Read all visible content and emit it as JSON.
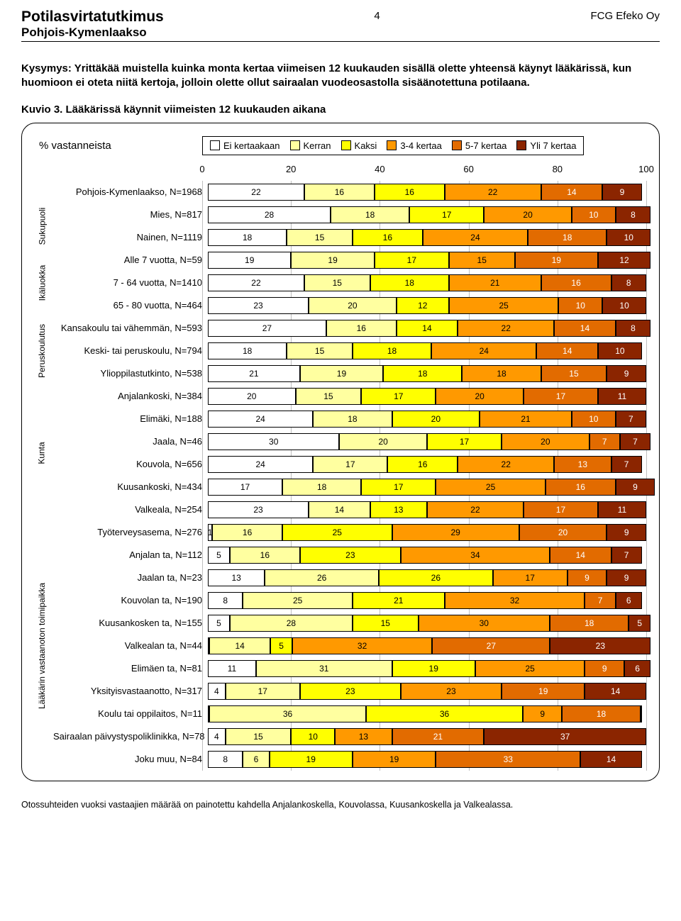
{
  "header": {
    "title": "Potilasvirtatutkimus",
    "subtitle": "Pohjois-Kymenlaakso",
    "page_number": "4",
    "company": "FCG Efeko Oy"
  },
  "question": "Kysymys: Yrittäkää muistella kuinka monta kertaa viimeisen 12 kuukauden sisällä olette yhteensä käynyt lääkärissä, kun huomioon ei oteta niitä kertoja, jolloin olette ollut sairaalan vuodeosastolla sisäänotettuna potilaana.",
  "kuvio": "Kuvio 3. Lääkärissä käynnit viimeisten 12 kuukauden aikana",
  "chart": {
    "y_title": "% vastanneista",
    "legend": [
      {
        "label": "Ei kertaakaan",
        "color": "#ffffff"
      },
      {
        "label": "Kerran",
        "color": "#ffffa0"
      },
      {
        "label": "Kaksi",
        "color": "#ffff00"
      },
      {
        "label": "3-4 kertaa",
        "color": "#ff9900"
      },
      {
        "label": "5-7 kertaa",
        "color": "#e26b00"
      },
      {
        "label": "Yli 7 kertaa",
        "color": "#8b2500"
      }
    ],
    "x_ticks": [
      0,
      20,
      40,
      60,
      80,
      100
    ],
    "x_max": 100,
    "dark_threshold": 4,
    "groups": [
      {
        "label": "",
        "rows": [
          {
            "label": "Pohjois-Kymenlaakso, N=1968",
            "values": [
              22,
              16,
              16,
              22,
              14,
              9
            ]
          }
        ]
      },
      {
        "label": "Sukupuoli",
        "rows": [
          {
            "label": "Mies, N=817",
            "values": [
              28,
              18,
              17,
              20,
              10,
              8
            ]
          },
          {
            "label": "Nainen, N=1119",
            "values": [
              18,
              15,
              16,
              24,
              18,
              10
            ]
          }
        ]
      },
      {
        "label": "Ikäluokka",
        "rows": [
          {
            "label": "Alle 7 vuotta, N=59",
            "values": [
              19,
              19,
              17,
              15,
              19,
              12
            ]
          },
          {
            "label": "7 - 64 vuotta, N=1410",
            "values": [
              22,
              15,
              18,
              21,
              16,
              8
            ]
          },
          {
            "label": "65 - 80 vuotta, N=464",
            "values": [
              23,
              20,
              12,
              25,
              10,
              10
            ]
          }
        ]
      },
      {
        "label": "Peruskoulutus",
        "rows": [
          {
            "label": "Kansakoulu tai vähemmän, N=593",
            "values": [
              27,
              16,
              14,
              22,
              14,
              8
            ]
          },
          {
            "label": "Keski- tai peruskoulu, N=794",
            "values": [
              18,
              15,
              18,
              24,
              14,
              10
            ]
          },
          {
            "label": "Ylioppilastutkinto, N=538",
            "values": [
              21,
              19,
              18,
              18,
              15,
              9
            ]
          }
        ]
      },
      {
        "label": "",
        "rows": [
          {
            "label": "Anjalankoski, N=384",
            "values": [
              20,
              15,
              17,
              20,
              17,
              11
            ]
          },
          {
            "label": "Elimäki, N=188",
            "values": [
              24,
              18,
              20,
              21,
              10,
              7
            ]
          }
        ]
      },
      {
        "label": "Kunta",
        "rows": [
          {
            "label": "Jaala, N=46",
            "values": [
              30,
              20,
              17,
              20,
              7,
              7
            ]
          },
          {
            "label": "Kouvola, N=656",
            "values": [
              24,
              17,
              16,
              22,
              13,
              7
            ]
          }
        ]
      },
      {
        "label": "",
        "rows": [
          {
            "label": "Kuusankoski, N=434",
            "values": [
              17,
              18,
              17,
              25,
              16,
              9
            ]
          },
          {
            "label": "Valkeala, N=254",
            "values": [
              23,
              14,
              13,
              22,
              17,
              11
            ]
          },
          {
            "label": "Työterveysasema, N=276",
            "values": [
              1,
              16,
              25,
              29,
              20,
              9
            ]
          },
          {
            "label": "Anjalan ta, N=112",
            "values": [
              5,
              16,
              23,
              34,
              14,
              7
            ]
          }
        ]
      },
      {
        "label": "Lääkärin vastaanoton toimipaikka",
        "rows": [
          {
            "label": "Jaalan ta, N=23",
            "values": [
              13,
              26,
              26,
              17,
              9,
              9
            ]
          },
          {
            "label": "Kouvolan ta, N=190",
            "values": [
              8,
              25,
              21,
              32,
              7,
              6
            ]
          },
          {
            "label": "Kuusankosken ta, N=155",
            "values": [
              5,
              28,
              15,
              30,
              18,
              5
            ]
          },
          {
            "label": "Valkealan ta, N=44",
            "values": [
              0,
              14,
              5,
              32,
              27,
              23
            ]
          },
          {
            "label": "Elimäen ta, N=81",
            "values": [
              11,
              31,
              19,
              25,
              9,
              6
            ]
          },
          {
            "label": "Yksityisvastaanotto, N=317",
            "values": [
              4,
              17,
              23,
              23,
              19,
              14
            ]
          },
          {
            "label": "Koulu tai oppilaitos, N=11",
            "values": [
              0,
              36,
              36,
              9,
              18,
              0
            ]
          }
        ]
      },
      {
        "label": "",
        "rows": [
          {
            "label": "Sairaalan päivystyspoliklinikka, N=78",
            "values": [
              4,
              15,
              10,
              13,
              21,
              37
            ]
          },
          {
            "label": "Joku muu, N=84",
            "values": [
              8,
              6,
              19,
              19,
              33,
              14
            ]
          }
        ]
      }
    ]
  },
  "footnote": "Otossuhteiden vuoksi vastaajien määrää on painotettu kahdella Anjalankoskella, Kouvolassa, Kuusankoskella ja Valkealassa."
}
